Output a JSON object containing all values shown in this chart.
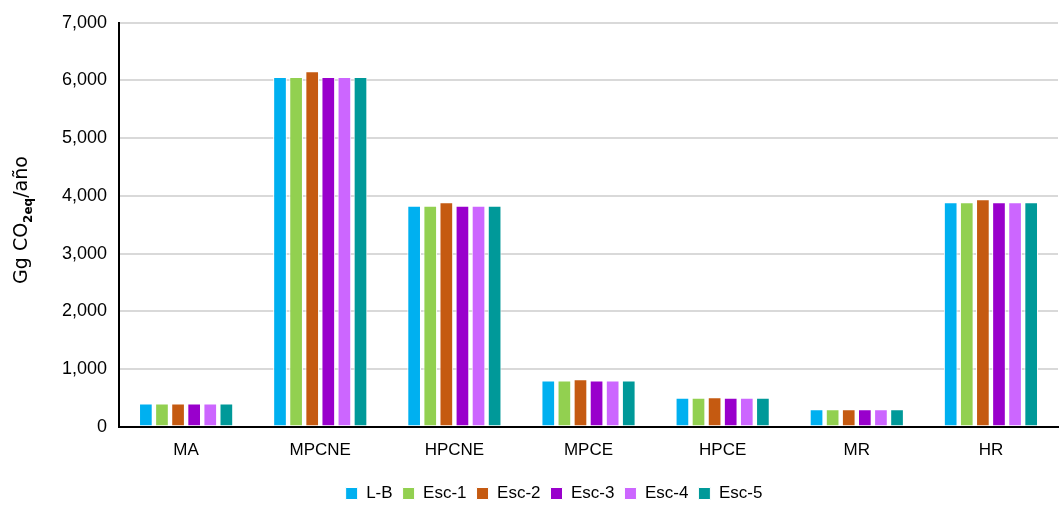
{
  "chart_data": {
    "type": "bar",
    "ylabel": "Gg CO$_{2eq}$/año",
    "categories": [
      "MA",
      "MPCNE",
      "HPCNE",
      "MPCE",
      "HPCE",
      "MR",
      "HR"
    ],
    "series": [
      {
        "name": "L-B",
        "color": "#00b0f0",
        "values": [
          400,
          6060,
          3830,
          800,
          500,
          300,
          3890
        ]
      },
      {
        "name": "Esc-1",
        "color": "#92d050",
        "values": [
          400,
          6060,
          3830,
          800,
          500,
          300,
          3890
        ]
      },
      {
        "name": "Esc-2",
        "color": "#c55a11",
        "values": [
          400,
          6160,
          3890,
          820,
          510,
          300,
          3940
        ]
      },
      {
        "name": "Esc-3",
        "color": "#9900cc",
        "values": [
          400,
          6060,
          3830,
          800,
          500,
          300,
          3890
        ]
      },
      {
        "name": "Esc-4",
        "color": "#cc66ff",
        "values": [
          400,
          6060,
          3830,
          800,
          500,
          300,
          3890
        ]
      },
      {
        "name": "Esc-5",
        "color": "#009999",
        "values": [
          400,
          6060,
          3830,
          800,
          500,
          300,
          3890
        ]
      }
    ],
    "ylim": [
      0,
      7000
    ],
    "yticks": [
      0,
      {
        "value": 1000,
        "label": "1,000"
      },
      {
        "value": 2000,
        "label": "2,000"
      },
      {
        "value": 3000,
        "label": "3,000"
      },
      {
        "value": 4000,
        "label": "4,000"
      },
      {
        "value": 5000,
        "label": "5,000"
      },
      {
        "value": 6000,
        "label": "6,000"
      },
      {
        "value": 7000,
        "label": "7,000"
      }
    ],
    "grid": "y",
    "legend": "bottom"
  }
}
